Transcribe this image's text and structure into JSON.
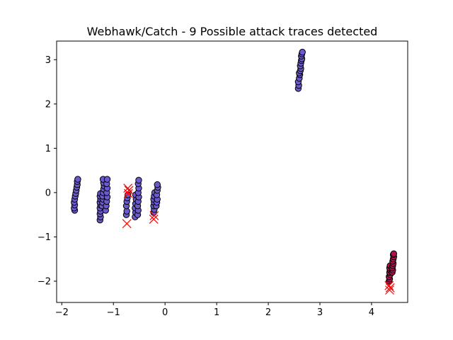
{
  "chart_data": {
    "type": "scatter",
    "title": "Webhawk/Catch - 9 Possible attack traces detected",
    "xlabel": "",
    "ylabel": "",
    "xlim": [
      -2.1,
      4.7
    ],
    "ylim": [
      -2.48,
      3.42
    ],
    "x_ticks": [
      -2,
      -1,
      0,
      1,
      2,
      3,
      4
    ],
    "y_ticks": [
      -2,
      -1,
      0,
      1,
      2,
      3
    ],
    "grid": false,
    "colors": {
      "cluster_main": "#6a5acd",
      "cluster_other": "#b0114e",
      "marker_edge": "#000000",
      "anomaly": "#ff0000"
    },
    "series": [
      {
        "marker": "circle",
        "color": "#6a5acd",
        "points": [
          [
            -1.75,
            -0.4
          ],
          [
            -1.76,
            -0.35
          ],
          [
            -1.75,
            -0.28
          ],
          [
            -1.76,
            -0.22
          ],
          [
            -1.75,
            -0.15
          ],
          [
            -1.74,
            -0.08
          ],
          [
            -1.73,
            -0.02
          ],
          [
            -1.72,
            0.05
          ],
          [
            -1.71,
            0.12
          ],
          [
            -1.7,
            0.18
          ],
          [
            -1.7,
            0.25
          ],
          [
            -1.69,
            0.3
          ],
          [
            -1.26,
            -0.62
          ],
          [
            -1.25,
            -0.55
          ],
          [
            -1.26,
            -0.48
          ],
          [
            -1.25,
            -0.42
          ],
          [
            -1.26,
            -0.35
          ],
          [
            -1.25,
            -0.28
          ],
          [
            -1.26,
            -0.22
          ],
          [
            -1.25,
            -0.15
          ],
          [
            -1.26,
            -0.08
          ],
          [
            -1.25,
            -0.02
          ],
          [
            -1.22,
            -0.3
          ],
          [
            -1.21,
            -0.22
          ],
          [
            -1.2,
            -0.15
          ],
          [
            -1.21,
            -0.08
          ],
          [
            -1.2,
            0
          ],
          [
            -1.19,
            0.08
          ],
          [
            -1.18,
            0.15
          ],
          [
            -1.19,
            0.22
          ],
          [
            -1.2,
            0.3
          ],
          [
            -1.15,
            -0.4
          ],
          [
            -1.14,
            -0.3
          ],
          [
            -1.13,
            -0.2
          ],
          [
            -1.12,
            -0.1
          ],
          [
            -1.13,
            0
          ],
          [
            -1.12,
            0.1
          ],
          [
            -1.13,
            0.2
          ],
          [
            -1.12,
            0.3
          ],
          [
            -0.75,
            -0.5
          ],
          [
            -0.74,
            -0.42
          ],
          [
            -0.75,
            -0.3
          ],
          [
            -0.74,
            -0.2
          ],
          [
            -0.73,
            -0.12
          ],
          [
            -0.72,
            -0.05
          ],
          [
            -0.58,
            -0.55
          ],
          [
            -0.57,
            -0.45
          ],
          [
            -0.58,
            -0.35
          ],
          [
            -0.57,
            -0.25
          ],
          [
            -0.56,
            -0.15
          ],
          [
            -0.57,
            -0.05
          ],
          [
            -0.53,
            -0.5
          ],
          [
            -0.52,
            -0.4
          ],
          [
            -0.53,
            -0.3
          ],
          [
            -0.52,
            -0.2
          ],
          [
            -0.51,
            -0.1
          ],
          [
            -0.52,
            0
          ],
          [
            -0.51,
            0.1
          ],
          [
            -0.52,
            0.2
          ],
          [
            -0.51,
            0.28
          ],
          [
            -0.22,
            -0.45
          ],
          [
            -0.21,
            -0.38
          ],
          [
            -0.22,
            -0.3
          ],
          [
            -0.21,
            -0.22
          ],
          [
            -0.22,
            -0.15
          ],
          [
            -0.21,
            -0.08
          ],
          [
            -0.2,
            0
          ],
          [
            -0.17,
            -0.3
          ],
          [
            -0.16,
            -0.22
          ],
          [
            -0.15,
            -0.15
          ],
          [
            -0.16,
            -0.05
          ],
          [
            -0.15,
            0.05
          ],
          [
            -0.14,
            0.12
          ],
          [
            -0.15,
            0.18
          ],
          [
            2.58,
            2.35
          ],
          [
            2.59,
            2.42
          ],
          [
            2.58,
            2.5
          ],
          [
            2.6,
            2.58
          ],
          [
            2.61,
            2.66
          ],
          [
            2.6,
            2.7
          ],
          [
            2.62,
            2.75
          ],
          [
            2.63,
            2.8
          ],
          [
            2.62,
            2.86
          ],
          [
            2.63,
            2.92
          ],
          [
            2.64,
            2.98
          ],
          [
            2.65,
            3.02
          ],
          [
            2.64,
            3.08
          ],
          [
            2.65,
            3.13
          ],
          [
            2.66,
            3.17
          ]
        ]
      },
      {
        "marker": "circle",
        "color": "#b0114e",
        "points": [
          [
            4.34,
            -2.0
          ],
          [
            4.35,
            -1.95
          ],
          [
            4.34,
            -1.9
          ],
          [
            4.36,
            -1.85
          ],
          [
            4.35,
            -1.8
          ],
          [
            4.36,
            -1.75
          ],
          [
            4.35,
            -1.7
          ],
          [
            4.36,
            -1.65
          ],
          [
            4.4,
            -1.8
          ],
          [
            4.41,
            -1.75
          ],
          [
            4.4,
            -1.7
          ],
          [
            4.41,
            -1.65
          ],
          [
            4.42,
            -1.6
          ],
          [
            4.41,
            -1.55
          ],
          [
            4.42,
            -1.5
          ],
          [
            4.43,
            -1.45
          ],
          [
            4.42,
            -1.4
          ],
          [
            4.43,
            -1.38
          ]
        ]
      },
      {
        "marker": "x",
        "color": "#ff0000",
        "points": [
          [
            -0.74,
            -0.7
          ],
          [
            -0.72,
            0.1
          ],
          [
            -0.7,
            0.05
          ],
          [
            -0.71,
            -0.02
          ],
          [
            -0.22,
            -0.6
          ],
          [
            -0.21,
            -0.52
          ],
          [
            4.35,
            -2.2
          ],
          [
            4.36,
            -2.15
          ],
          [
            4.34,
            -2.1
          ]
        ]
      }
    ]
  }
}
